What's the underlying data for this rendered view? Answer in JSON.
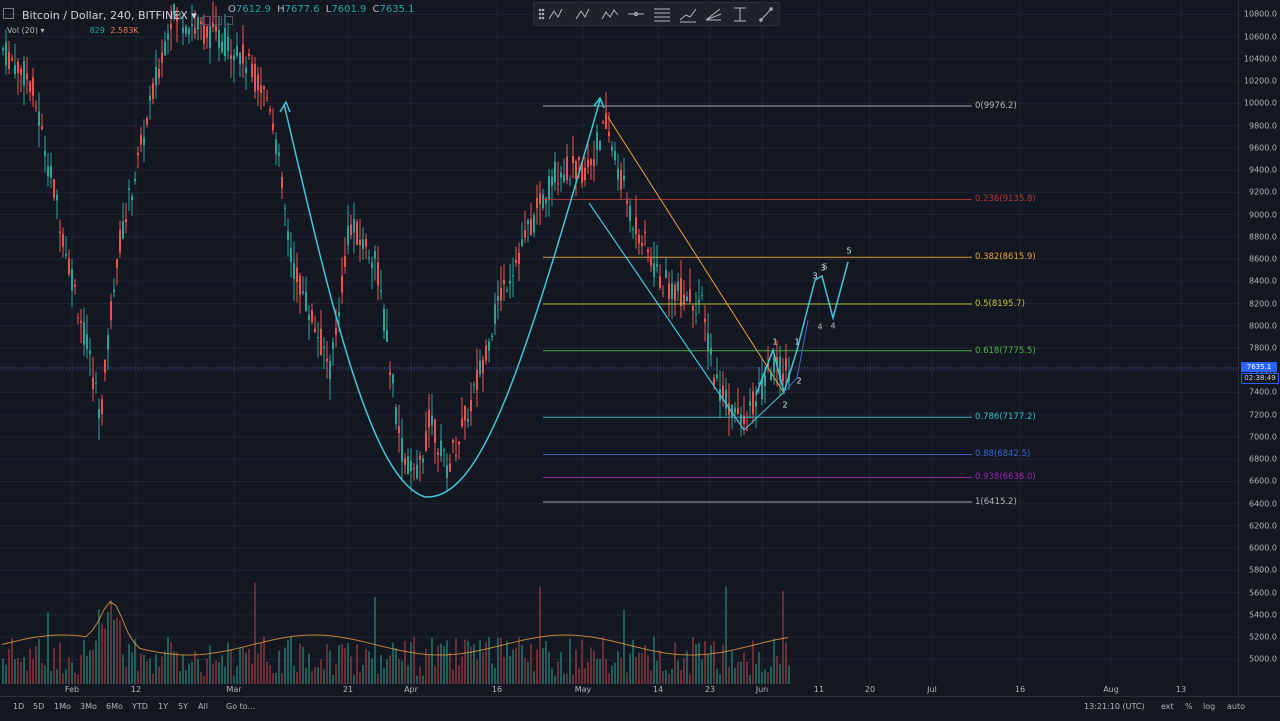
{
  "header": {
    "symbol_title": "Bitcoin / Dollar, 240, BITFINEX",
    "dropdown_glyph": "▾",
    "ohlc": {
      "open_prefix": "O",
      "open": "7612.9",
      "high_prefix": "H",
      "high": "7677.6",
      "low_prefix": "L",
      "low": "7601.9",
      "close_prefix": "C",
      "close": "7635.1"
    }
  },
  "volume_legend": {
    "label": "Vol (20)",
    "dropdown_glyph": "▾",
    "value1": "829",
    "value2": "2.583K"
  },
  "price_axis": {
    "ticks": [
      "10800.0",
      "10600.0",
      "10400.0",
      "10200.0",
      "10000.0",
      "9800.0",
      "9600.0",
      "9400.0",
      "9200.0",
      "9000.0",
      "8800.0",
      "8600.0",
      "8400.0",
      "8200.0",
      "8000.0",
      "7800.0",
      "7600.0",
      "7400.0",
      "7200.0",
      "7000.0",
      "6800.0",
      "6600.0",
      "6400.0",
      "6200.0",
      "6000.0",
      "5800.0",
      "5600.0",
      "5400.0",
      "5200.0",
      "5000.0"
    ],
    "current_price": "7635.1",
    "countdown": "02:38:49"
  },
  "time_axis": {
    "labels": [
      "Feb",
      "12",
      "Mar",
      "21",
      "Apr",
      "16",
      "May",
      "14",
      "23",
      "Jun",
      "11",
      "20",
      "Jul",
      "16",
      "Aug",
      "13"
    ]
  },
  "fib_levels": [
    {
      "label": "0(9976.2)",
      "color": "#b2b5be"
    },
    {
      "label": "0.236(9135.8)",
      "color": "#b2383b"
    },
    {
      "label": "0.382(8615.9)",
      "color": "#e8a33d"
    },
    {
      "label": "0.5(8195.7)",
      "color": "#c7c33a"
    },
    {
      "label": "0.618(7775.5)",
      "color": "#54b24a"
    },
    {
      "label": "0.786(7177.2)",
      "color": "#3fb8c8"
    },
    {
      "label": "0.88(6842.5)",
      "color": "#3d68c4"
    },
    {
      "label": "0.938(6636.0)",
      "color": "#9c27b0"
    },
    {
      "label": "1(6415.2)",
      "color": "#b2b5be"
    }
  ],
  "wave_labels": [
    "1",
    "2",
    "1",
    "2",
    "3",
    "3",
    "5",
    "4",
    "4",
    "5"
  ],
  "toolbar": {
    "tools": [
      "abcd-pattern",
      "abcd-pattern-2",
      "xabcd-pattern",
      "horizontal-line",
      "long-position",
      "fib-retracement",
      "fib-fan",
      "date-price-range",
      "trend-line"
    ]
  },
  "bottom_bar": {
    "ranges": [
      "1D",
      "5D",
      "1Mo",
      "3Mo",
      "6Mo",
      "YTD",
      "1Y",
      "5Y",
      "All"
    ],
    "goto": "Go to...",
    "clock": "13:21:10 (UTC)",
    "ext": "ext",
    "percent": "%",
    "log": "log",
    "auto": "auto"
  },
  "colors": {
    "background": "#131722",
    "up": "#26a69a",
    "down": "#ef5350",
    "drawing": "#41c8d8",
    "orange_trend": "#e8a33d",
    "price_tag": "#2962ff",
    "countdown": "#131722"
  }
}
